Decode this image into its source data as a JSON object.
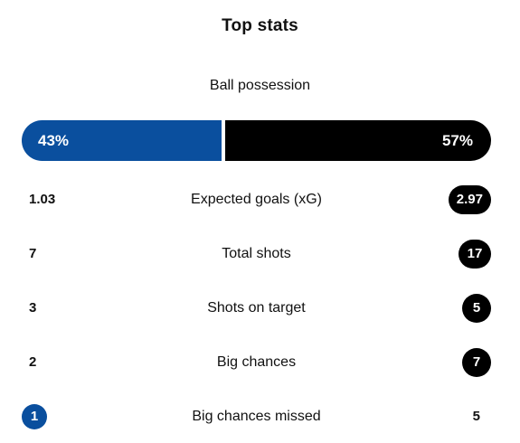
{
  "title": "Top stats",
  "colors": {
    "home": "#0a4f9e",
    "away": "#000000"
  },
  "possession": {
    "label": "Ball possession",
    "home_text": "43%",
    "away_text": "57%",
    "home_value": 43,
    "away_value": 57
  },
  "stats": [
    {
      "label": "Expected goals (xG)",
      "home": "1.03",
      "away": "2.97",
      "highlight": "away"
    },
    {
      "label": "Total shots",
      "home": "7",
      "away": "17",
      "highlight": "away"
    },
    {
      "label": "Shots on target",
      "home": "3",
      "away": "5",
      "highlight": "away"
    },
    {
      "label": "Big chances",
      "home": "2",
      "away": "7",
      "highlight": "away"
    },
    {
      "label": "Big chances missed",
      "home": "1",
      "away": "5",
      "highlight": "home"
    }
  ]
}
